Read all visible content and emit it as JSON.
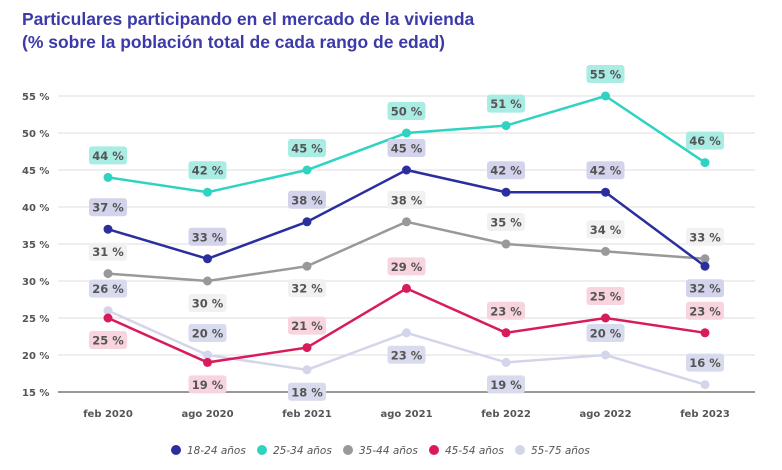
{
  "chart_data": {
    "type": "line",
    "title": "Particulares participando en el mercado de la vivienda",
    "subtitle": "(% sobre la población total de cada rango de edad)",
    "categories": [
      "feb 2020",
      "ago 2020",
      "feb 2021",
      "ago 2021",
      "feb 2022",
      "ago 2022",
      "feb 2023"
    ],
    "ylim": [
      15,
      55
    ],
    "yticks": [
      15,
      20,
      25,
      30,
      35,
      40,
      45,
      50,
      55
    ],
    "ytick_suffix": " %",
    "grid": true,
    "legend_placement": "bottom",
    "series": [
      {
        "name": "18-24 años",
        "color": "#2b2f9e",
        "label_bg": "#d3d4ec",
        "values": [
          37,
          33,
          38,
          45,
          42,
          42,
          32
        ]
      },
      {
        "name": "25-34 años",
        "color": "#2fd3c1",
        "label_bg": "#a9ece4",
        "values": [
          44,
          42,
          45,
          50,
          51,
          55,
          46
        ]
      },
      {
        "name": "35-44 años",
        "color": "#999999",
        "label_bg": "#f1f1f1",
        "values": [
          31,
          30,
          32,
          38,
          35,
          34,
          33
        ]
      },
      {
        "name": "45-54 años",
        "color": "#d81b5c",
        "label_bg": "#f8d4de",
        "values": [
          25,
          19,
          21,
          29,
          23,
          25,
          23
        ]
      },
      {
        "name": "55-75 años",
        "color": "#d3d5ea",
        "label_bg": "#d8daee",
        "values": [
          26,
          20,
          18,
          23,
          19,
          20,
          16
        ]
      }
    ]
  }
}
